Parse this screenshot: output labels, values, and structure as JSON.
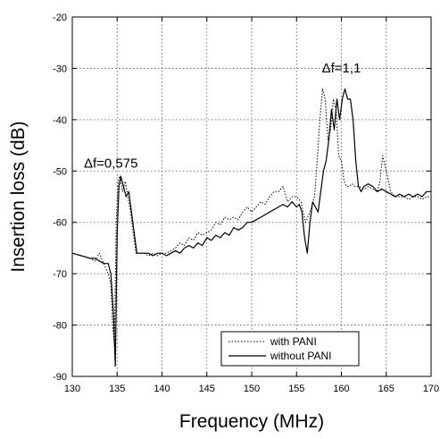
{
  "chart_data": {
    "type": "line",
    "title": "",
    "xlabel": "Frequency (MHz)",
    "ylabel": "Insertion loss (dB)",
    "xlim": [
      130,
      170
    ],
    "ylim": [
      -90,
      -20
    ],
    "xticks": [
      130,
      135,
      140,
      145,
      150,
      155,
      160,
      165,
      170
    ],
    "yticks": [
      -90,
      -80,
      -70,
      -60,
      -50,
      -40,
      -30,
      -20
    ],
    "grid": true,
    "legend_position": "bottom-right",
    "annotations": [
      {
        "text": "Δf=0,575",
        "x": 134.3,
        "y": -50
      },
      {
        "text": "Δf=1,1",
        "x": 160.0,
        "y": -31.5
      }
    ],
    "series": [
      {
        "name": "with PANI",
        "style": "dotted",
        "x": [
          130,
          131,
          132,
          132.5,
          133,
          133.5,
          134,
          134.3,
          134.5,
          134.7,
          134.9,
          135.1,
          135.3,
          135.6,
          135.9,
          136.2,
          136.5,
          136.8,
          137.1,
          137.5,
          138,
          138.5,
          139,
          139.5,
          140,
          140.5,
          141,
          141.5,
          142,
          142.5,
          143,
          143.5,
          144,
          144.5,
          145,
          145.5,
          146,
          146.5,
          147,
          147.5,
          148,
          148.5,
          149,
          149.5,
          150,
          150.5,
          151,
          151.5,
          152,
          152.5,
          153,
          153.5,
          154,
          154.5,
          155,
          155.5,
          156,
          156.5,
          157,
          157.3,
          157.6,
          157.9,
          158.2,
          158.5,
          158.8,
          159.1,
          159.4,
          159.7,
          160,
          160.3,
          160.6,
          160.9,
          161.2,
          161.5,
          162,
          162.5,
          163,
          163.5,
          164,
          164.3,
          164.6,
          165,
          165.5,
          166,
          166.5,
          167,
          167.5,
          168,
          168.5,
          169,
          169.5,
          170
        ],
        "y": [
          -66,
          -66.5,
          -67,
          -67.5,
          -66,
          -68,
          -70,
          -72,
          -80,
          -84,
          -60,
          -52,
          -51,
          -54,
          -52,
          -55,
          -58,
          -62,
          -66,
          -66,
          -66,
          -66.5,
          -66,
          -66.5,
          -66,
          -66,
          -65.5,
          -65,
          -64,
          -64.5,
          -63,
          -63.5,
          -62,
          -62.5,
          -62,
          -61.5,
          -60,
          -60.5,
          -59,
          -59.5,
          -59,
          -59.5,
          -58,
          -57,
          -58,
          -57,
          -56,
          -56.5,
          -55,
          -54,
          -54,
          -53,
          -56,
          -55,
          -55,
          -56,
          -60,
          -58,
          -55,
          -48,
          -40,
          -34,
          -36,
          -44,
          -42,
          -36,
          -38,
          -47,
          -48,
          -52,
          -53,
          -53,
          -52.5,
          -53,
          -53,
          -53.5,
          -53,
          -53.5,
          -54,
          -52,
          -47,
          -50,
          -54,
          -55,
          -55,
          -55,
          -55.5,
          -55,
          -55,
          -55.5,
          -55,
          -55
        ]
      },
      {
        "name": "without PANI",
        "style": "solid",
        "x": [
          130,
          131,
          132,
          132.5,
          133,
          133.5,
          134,
          134.3,
          134.6,
          134.8,
          135,
          135.2,
          135.4,
          135.7,
          136,
          136.3,
          136.6,
          136.9,
          137.2,
          137.6,
          138,
          138.5,
          139,
          139.5,
          140,
          140.5,
          141,
          141.5,
          142,
          142.5,
          143,
          143.5,
          144,
          144.5,
          145,
          145.5,
          146,
          146.5,
          147,
          147.5,
          148,
          148.5,
          149,
          149.5,
          150,
          150.5,
          151,
          151.5,
          152,
          152.5,
          153,
          153.5,
          154,
          154.5,
          155,
          155.3,
          155.6,
          155.9,
          156.2,
          156.5,
          156.8,
          157.1,
          157.4,
          157.7,
          158,
          158.3,
          158.6,
          158.9,
          159.2,
          159.5,
          159.8,
          160.1,
          160.4,
          160.7,
          161,
          161.3,
          161.6,
          161.9,
          162.2,
          162.5,
          163,
          163.5,
          164,
          164.5,
          165,
          165.5,
          166,
          166.5,
          167,
          167.5,
          168,
          168.5,
          169,
          169.5,
          170
        ],
        "y": [
          -66,
          -66.5,
          -67,
          -67,
          -67.5,
          -68,
          -68,
          -70,
          -78,
          -88,
          -62,
          -53,
          -51,
          -53,
          -55,
          -54,
          -58,
          -62,
          -66,
          -66,
          -66,
          -66,
          -66.5,
          -66,
          -66,
          -66.5,
          -66,
          -65.5,
          -66,
          -65,
          -64.5,
          -65,
          -64,
          -64.5,
          -63,
          -63.5,
          -62.5,
          -63,
          -62,
          -62.5,
          -61,
          -61.5,
          -61,
          -60,
          -60,
          -59.5,
          -59,
          -58.5,
          -58,
          -57.5,
          -57,
          -56.5,
          -57,
          -56,
          -57,
          -56.5,
          -58,
          -63,
          -66,
          -60,
          -56,
          -57,
          -58,
          -54,
          -50,
          -48,
          -44,
          -38,
          -42,
          -36,
          -40,
          -36,
          -34,
          -36,
          -36,
          -40,
          -48,
          -53,
          -54,
          -53,
          -52.5,
          -53,
          -54,
          -53.5,
          -54,
          -54.5,
          -55,
          -54.5,
          -55,
          -54.5,
          -55,
          -54.5,
          -55,
          -54,
          -54
        ]
      }
    ]
  }
}
